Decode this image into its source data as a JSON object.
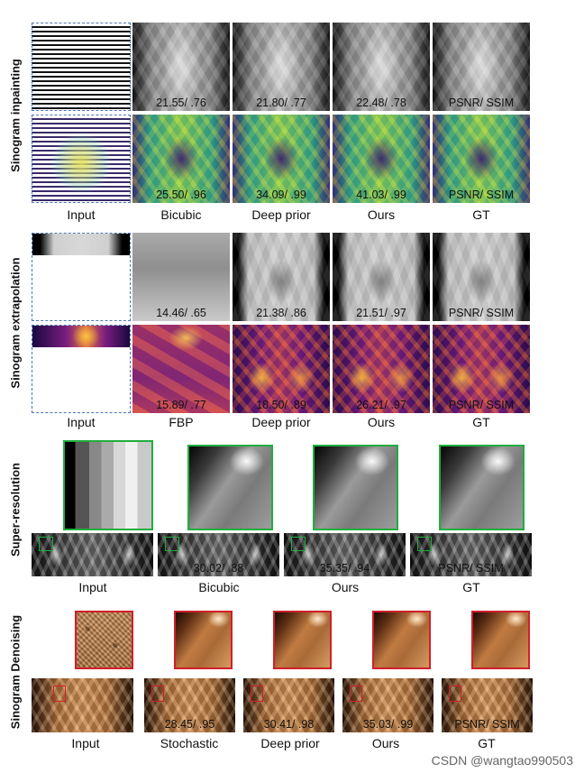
{
  "rows": {
    "inpainting": {
      "label": "Sinogram inpainting"
    },
    "extrapolation": {
      "label": "Sinogram extrapolation"
    },
    "superres": {
      "label": "Super-resolution"
    },
    "denoising": {
      "label": "Sinogram Denoising"
    }
  },
  "inpainting": {
    "captions": [
      "Input",
      "Bicubic",
      "Deep prior",
      "Ours",
      "GT"
    ],
    "gray_metrics": [
      "21.55/ .76",
      "21.80/ .77",
      "22.48/ .78",
      "PSNR/ SSIM"
    ],
    "color_metrics": [
      "25.50/ .96",
      "34.09/ .99",
      "41.03/ .99",
      "PSNR/ SSIM"
    ]
  },
  "extrapolation": {
    "captions": [
      "Input",
      "FBP",
      "Deep prior",
      "Ours",
      "GT"
    ],
    "gray_metrics": [
      "14.46/ .65",
      "21.38/ .86",
      "21.51/ .97",
      "PSNR/ SSIM"
    ],
    "color_metrics": [
      "15.89/ .77",
      "18.50/ .89",
      "26.21/ .97",
      "PSNR/ SSIM"
    ]
  },
  "superres": {
    "captions": [
      "Input",
      "Bicubic",
      "Ours",
      "GT"
    ],
    "metrics": [
      "30.02/ .88",
      "35.35/ .94",
      "PSNR/ SSIM"
    ]
  },
  "denoising": {
    "captions": [
      "Input",
      "Stochastic",
      "Deep prior",
      "Ours",
      "GT"
    ],
    "metrics": [
      "28.45/ .95",
      "30.41/ .98",
      "35.03/ .99",
      "PSNR/ SSIM"
    ]
  },
  "watermark": "CSDN @wangtao990503"
}
